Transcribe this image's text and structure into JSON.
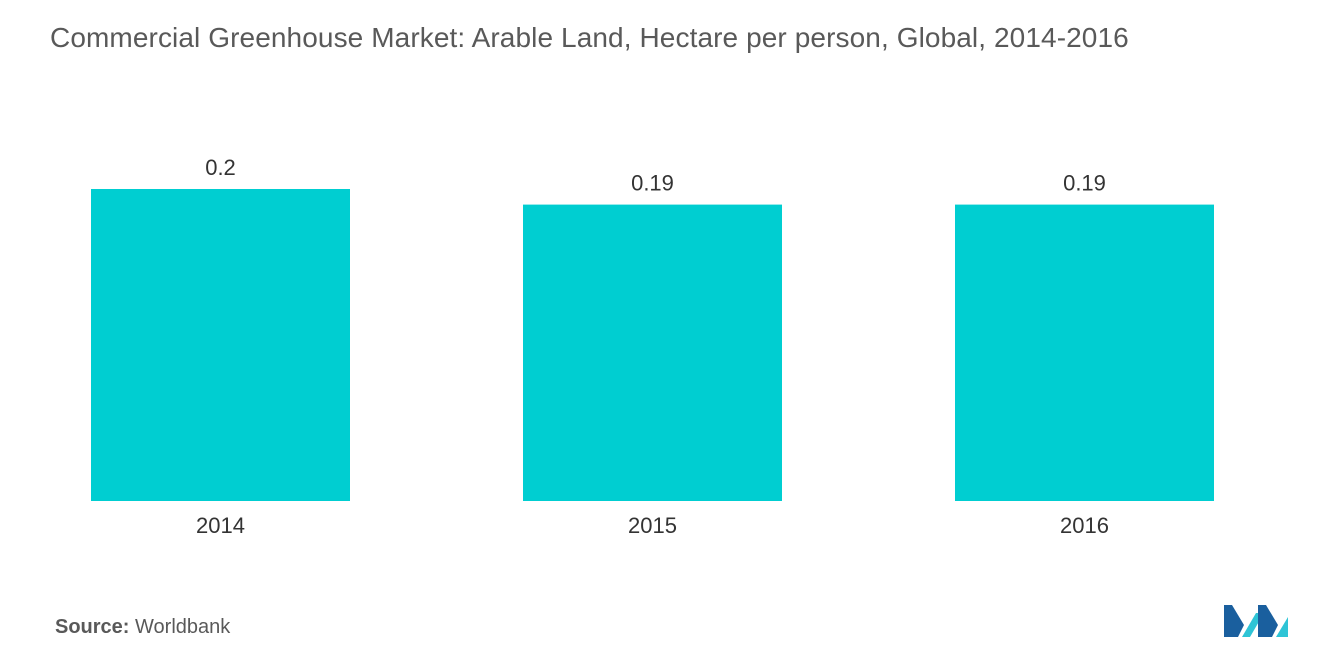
{
  "title": "Commercial Greenhouse Market: Arable Land, Hectare per person, Global, 2014-2016",
  "source": {
    "label": "Source:",
    "value": "Worldbank"
  },
  "logo": {
    "icon": "mordor-intelligence-logo-icon",
    "colors": [
      "#1a5f9e",
      "#2ec4d6"
    ]
  },
  "colors": {
    "bar": "#00ced1",
    "text": "#595959",
    "label": "#333333"
  },
  "chart_data": {
    "type": "bar",
    "title": "Commercial Greenhouse Market: Arable Land, Hectare per person, Global, 2014-2016",
    "categories": [
      "2014",
      "2015",
      "2016"
    ],
    "values": [
      0.2,
      0.19,
      0.19
    ],
    "data_labels": [
      "0.2",
      "0.19",
      "0.19"
    ],
    "xlabel": "",
    "ylabel": "",
    "y_axis_visible": false,
    "grid": false,
    "legend": "none"
  }
}
